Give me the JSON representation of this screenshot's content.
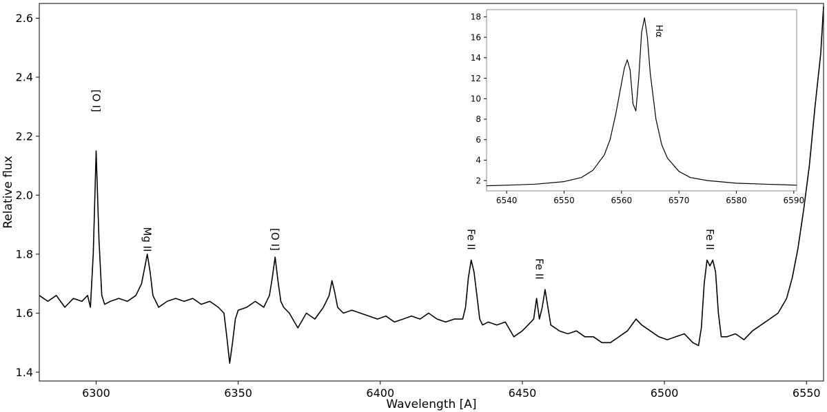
{
  "chart_data": [
    {
      "type": "line",
      "xlabel": "Wavelength [A]",
      "ylabel": "Relative flux",
      "xlim": [
        6280,
        6556
      ],
      "ylim": [
        1.37,
        2.65
      ],
      "xticks": [
        6300,
        6350,
        6400,
        6450,
        6500,
        6550
      ],
      "yticks": [
        1.4,
        1.6,
        1.8,
        2.0,
        2.2,
        2.4,
        2.6
      ],
      "grid": false,
      "line_color": "#000000",
      "x": [
        6280,
        6283,
        6286,
        6289,
        6292,
        6295,
        6297,
        6298,
        6299,
        6300,
        6301,
        6302,
        6303,
        6305,
        6308,
        6311,
        6314,
        6316,
        6317,
        6318,
        6319,
        6320,
        6322,
        6325,
        6328,
        6331,
        6334,
        6337,
        6340,
        6343,
        6345,
        6346,
        6347,
        6348,
        6349,
        6350,
        6353,
        6356,
        6359,
        6361,
        6362,
        6363,
        6364,
        6365,
        6366,
        6368,
        6371,
        6374,
        6377,
        6380,
        6382,
        6383,
        6384,
        6385,
        6387,
        6390,
        6393,
        6396,
        6399,
        6402,
        6405,
        6408,
        6411,
        6414,
        6417,
        6420,
        6423,
        6426,
        6429,
        6430,
        6431,
        6432,
        6433,
        6434,
        6435,
        6436,
        6438,
        6441,
        6444,
        6447,
        6450,
        6452,
        6454,
        6455,
        6456,
        6457,
        6458,
        6460,
        6463,
        6466,
        6469,
        6472,
        6475,
        6478,
        6481,
        6484,
        6487,
        6490,
        6492,
        6495,
        6498,
        6501,
        6504,
        6507,
        6510,
        6512,
        6513,
        6514,
        6515,
        6516,
        6517,
        6518,
        6519,
        6520,
        6522,
        6525,
        6528,
        6531,
        6534,
        6537,
        6540,
        6543,
        6545,
        6547,
        6549,
        6551,
        6553,
        6555,
        6556
      ],
      "y": [
        1.66,
        1.64,
        1.66,
        1.62,
        1.65,
        1.64,
        1.66,
        1.62,
        1.8,
        2.15,
        1.85,
        1.66,
        1.63,
        1.64,
        1.65,
        1.64,
        1.66,
        1.7,
        1.75,
        1.8,
        1.74,
        1.66,
        1.62,
        1.64,
        1.65,
        1.64,
        1.65,
        1.63,
        1.64,
        1.62,
        1.6,
        1.52,
        1.43,
        1.5,
        1.58,
        1.61,
        1.62,
        1.64,
        1.62,
        1.66,
        1.72,
        1.79,
        1.71,
        1.64,
        1.62,
        1.6,
        1.55,
        1.6,
        1.58,
        1.62,
        1.66,
        1.71,
        1.67,
        1.62,
        1.6,
        1.61,
        1.6,
        1.59,
        1.58,
        1.59,
        1.57,
        1.58,
        1.59,
        1.58,
        1.6,
        1.58,
        1.57,
        1.58,
        1.58,
        1.62,
        1.72,
        1.78,
        1.74,
        1.66,
        1.58,
        1.56,
        1.57,
        1.56,
        1.57,
        1.52,
        1.54,
        1.56,
        1.58,
        1.65,
        1.58,
        1.62,
        1.68,
        1.56,
        1.54,
        1.53,
        1.54,
        1.52,
        1.52,
        1.5,
        1.5,
        1.52,
        1.54,
        1.58,
        1.56,
        1.54,
        1.52,
        1.51,
        1.52,
        1.53,
        1.5,
        1.49,
        1.55,
        1.7,
        1.78,
        1.76,
        1.78,
        1.74,
        1.6,
        1.52,
        1.52,
        1.53,
        1.51,
        1.54,
        1.56,
        1.58,
        1.6,
        1.65,
        1.72,
        1.82,
        1.95,
        2.1,
        2.3,
        2.48,
        2.64
      ]
    },
    {
      "type": "line",
      "xlim": [
        6536.5,
        6590.5
      ],
      "ylim": [
        1.0,
        18.7
      ],
      "xticks": [
        6540,
        6550,
        6560,
        6570,
        6580,
        6590
      ],
      "yticks": [
        2,
        4,
        6,
        8,
        10,
        12,
        14,
        16,
        18
      ],
      "grid": false,
      "line_color": "#000000",
      "x": [
        6536.5,
        6540,
        6545,
        6550,
        6553,
        6555,
        6557,
        6558,
        6559,
        6560,
        6560.5,
        6561,
        6561.5,
        6562,
        6562.5,
        6563,
        6563.5,
        6564,
        6564.5,
        6565,
        6566,
        6567,
        6568,
        6570,
        6572,
        6575,
        6580,
        6585,
        6590.5
      ],
      "y": [
        1.5,
        1.55,
        1.65,
        1.9,
        2.3,
        3.0,
        4.5,
        6.0,
        8.5,
        11.5,
        13.0,
        13.8,
        12.8,
        9.5,
        8.8,
        12.0,
        16.5,
        17.9,
        16.0,
        12.5,
        8.0,
        5.5,
        4.2,
        2.9,
        2.3,
        2.0,
        1.75,
        1.65,
        1.55
      ]
    }
  ],
  "annotations": [
    {
      "label": "[O I]",
      "x": 6300,
      "y": 2.32
    },
    {
      "label": "Mg II",
      "x": 6318,
      "y": 1.85
    },
    {
      "label": "[O I]",
      "x": 6363,
      "y": 1.85
    },
    {
      "label": "Fe II",
      "x": 6432,
      "y": 1.85
    },
    {
      "label": "Fe II",
      "x": 6456,
      "y": 1.75
    },
    {
      "label": "Fe II",
      "x": 6516,
      "y": 1.85
    }
  ],
  "inset_annotation": {
    "label": "Hα",
    "x": 6566.5,
    "y": 16.6
  }
}
